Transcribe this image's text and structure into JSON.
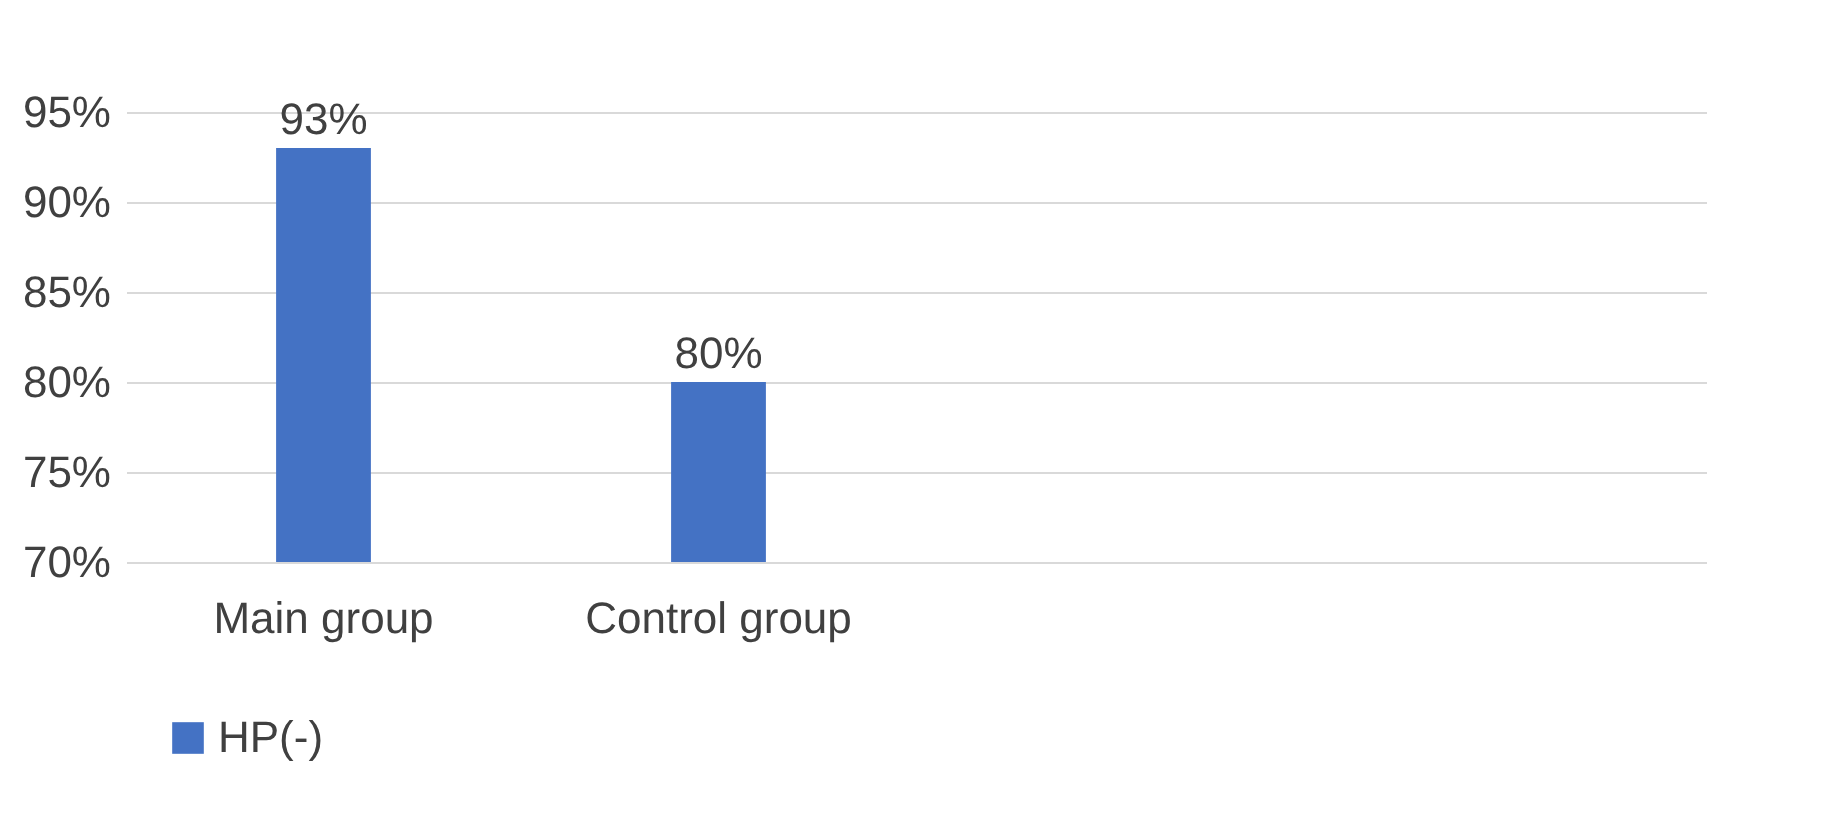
{
  "chart_data": {
    "type": "bar",
    "categories": [
      "Main group",
      "Control group",
      null,
      null
    ],
    "series": [
      {
        "name": "HP(-)",
        "color": "#4472c4",
        "values": [
          93,
          80,
          null,
          null
        ],
        "value_labels": [
          "93%",
          "80%",
          null,
          null
        ]
      }
    ],
    "ylim": [
      70,
      95
    ],
    "yticks": [
      {
        "value": 70,
        "label": "70%"
      },
      {
        "value": 75,
        "label": "75%"
      },
      {
        "value": 80,
        "label": "80%"
      },
      {
        "value": 85,
        "label": "85%"
      },
      {
        "value": 90,
        "label": "90%"
      },
      {
        "value": 95,
        "label": "95%"
      }
    ],
    "grid": "y",
    "legend": "bottom"
  }
}
